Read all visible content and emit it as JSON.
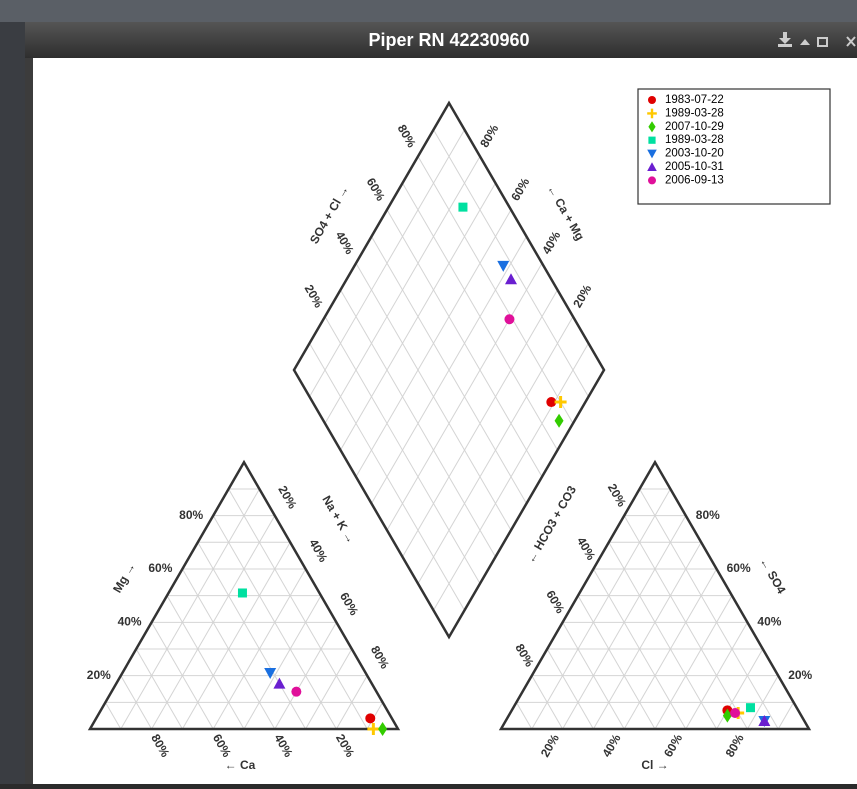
{
  "chart_data": {
    "type": "piper",
    "title": "Piper RN 42230960",
    "axis_titles": {
      "mg": "Mg →",
      "na_k": "Na + K →",
      "ca": "← Ca",
      "hco3_co3": "← HCO3 + CO3",
      "so4": "← SO4",
      "cl": "Cl →",
      "so4_cl": "SO4 + Cl →",
      "ca_mg": "← Ca + Mg"
    },
    "ticks": [
      {
        "value": 20,
        "label": "20%"
      },
      {
        "value": 40,
        "label": "40%"
      },
      {
        "value": 60,
        "label": "60%"
      },
      {
        "value": 80,
        "label": "80%"
      }
    ],
    "grid": [
      10,
      20,
      30,
      40,
      50,
      60,
      70,
      80,
      90
    ],
    "legend": "upper right",
    "series": [
      {
        "name": "1983-07-22",
        "color": "#e00000",
        "marker": "circle",
        "ca": 7,
        "mg": 4,
        "na_k": 89,
        "hco3_co3": 23,
        "so4": 7,
        "cl": 70
      },
      {
        "name": "1989-03-28",
        "color": "#ffc800",
        "marker": "plus",
        "ca": 8,
        "mg": 0,
        "na_k": 92,
        "hco3_co3": 20,
        "so4": 6,
        "cl": 74
      },
      {
        "name": "2007-10-29",
        "color": "#33cc00",
        "marker": "diamond",
        "ca": 5,
        "mg": 0,
        "na_k": 95,
        "hco3_co3": 24,
        "so4": 5,
        "cl": 71
      },
      {
        "name": "1989-03-28",
        "color": "#00e0a0",
        "marker": "square",
        "ca": 25,
        "mg": 51,
        "na_k": 24,
        "hco3_co3": 15,
        "so4": 8,
        "cl": 77
      },
      {
        "name": "2003-10-20",
        "color": "#1a6fe0",
        "marker": "triangle-down",
        "ca": 31,
        "mg": 21,
        "na_k": 48,
        "hco3_co3": 13,
        "so4": 3,
        "cl": 84
      },
      {
        "name": "2005-10-31",
        "color": "#6a1fd0",
        "marker": "triangle-up",
        "ca": 30,
        "mg": 17,
        "na_k": 53,
        "hco3_co3": 13,
        "so4": 3,
        "cl": 84
      },
      {
        "name": "2006-09-13",
        "color": "#e0109a",
        "marker": "circle",
        "ca": 26,
        "mg": 14,
        "na_k": 60,
        "hco3_co3": 21,
        "so4": 6,
        "cl": 73
      }
    ]
  }
}
